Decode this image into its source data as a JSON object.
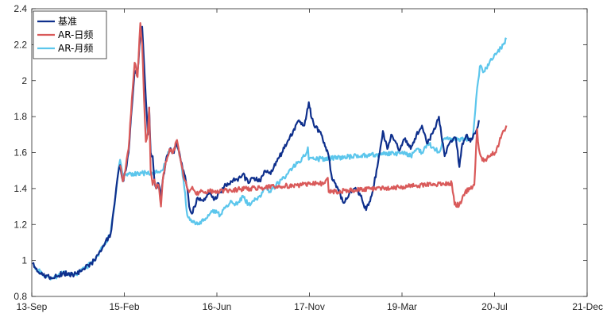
{
  "chart_data": {
    "type": "line",
    "title": "",
    "xlabel": "",
    "ylabel": "",
    "xlim": [
      "2013-09-13",
      "2021-12-13"
    ],
    "ylim": [
      0.8,
      2.4
    ],
    "x_ticks": [
      "13-Sep",
      "15-Feb",
      "16-Jun",
      "17-Nov",
      "19-Mar",
      "20-Jul",
      "21-Dec"
    ],
    "y_ticks": [
      "0.8",
      "1",
      "1.2",
      "1.4",
      "1.6",
      "1.8",
      "2",
      "2.2",
      "2.4"
    ],
    "grid": false,
    "legend_position": "top-left",
    "series": [
      {
        "name": "基准",
        "color": "#0e2f8c",
        "x": [
          "2013-09-18",
          "2013-11-10",
          "2014-01-01",
          "2014-03-01",
          "2014-05-01",
          "2014-07-01",
          "2014-08-20",
          "2014-10-01",
          "2014-11-15",
          "2014-12-10",
          "2014-12-25",
          "2015-01-05",
          "2015-01-20",
          "2015-02-05",
          "2015-02-20",
          "2015-03-10",
          "2015-03-25",
          "2015-04-10",
          "2015-04-25",
          "2015-05-05",
          "2015-05-15",
          "2015-05-25",
          "2015-06-05",
          "2015-06-12",
          "2015-06-20",
          "2015-07-01",
          "2015-07-10",
          "2015-07-20",
          "2015-08-01",
          "2015-08-15",
          "2015-08-25",
          "2015-09-10",
          "2015-10-01",
          "2015-10-20",
          "2015-11-10",
          "2015-12-01",
          "2015-12-20",
          "2016-01-05",
          "2016-01-15",
          "2016-01-30",
          "2016-03-01",
          "2016-04-01",
          "2016-05-01",
          "2016-06-01",
          "2016-07-01",
          "2016-08-01",
          "2016-09-01",
          "2016-10-01",
          "2016-11-01",
          "2016-12-01",
          "2017-01-01",
          "2017-02-01",
          "2017-03-01",
          "2017-04-01",
          "2017-05-01",
          "2017-06-01",
          "2017-07-01",
          "2017-08-01",
          "2017-09-01",
          "2017-10-01",
          "2017-10-25",
          "2017-11-10",
          "2017-12-01",
          "2018-01-01",
          "2018-01-25",
          "2018-02-10",
          "2018-03-01",
          "2018-04-01",
          "2018-05-01",
          "2018-06-01",
          "2018-07-01",
          "2018-08-01",
          "2018-09-01",
          "2018-10-01",
          "2018-11-01",
          "2018-12-01",
          "2018-12-25",
          "2019-01-15",
          "2019-02-15",
          "2019-03-01",
          "2019-04-01",
          "2019-05-01",
          "2019-06-01",
          "2019-07-01",
          "2019-08-01",
          "2019-09-01",
          "2019-10-01",
          "2019-11-01",
          "2019-12-01",
          "2020-01-01",
          "2020-01-20",
          "2020-02-05",
          "2020-03-01",
          "2020-03-20",
          "2020-04-01",
          "2020-04-20",
          "2020-05-05"
        ],
        "y": [
          0.98,
          0.92,
          0.9,
          0.93,
          0.92,
          0.96,
          1.0,
          1.07,
          1.15,
          1.35,
          1.48,
          1.53,
          1.44,
          1.5,
          1.6,
          1.85,
          2.05,
          2.05,
          2.25,
          2.3,
          2.1,
          1.9,
          1.7,
          1.85,
          1.6,
          1.58,
          1.45,
          1.4,
          1.43,
          1.35,
          1.45,
          1.55,
          1.62,
          1.6,
          1.65,
          1.55,
          1.48,
          1.4,
          1.3,
          1.26,
          1.35,
          1.33,
          1.38,
          1.34,
          1.38,
          1.42,
          1.44,
          1.45,
          1.48,
          1.43,
          1.46,
          1.44,
          1.5,
          1.48,
          1.55,
          1.6,
          1.66,
          1.72,
          1.78,
          1.75,
          1.88,
          1.79,
          1.74,
          1.7,
          1.63,
          1.58,
          1.45,
          1.4,
          1.32,
          1.37,
          1.4,
          1.36,
          1.28,
          1.36,
          1.52,
          1.72,
          1.62,
          1.7,
          1.65,
          1.61,
          1.68,
          1.62,
          1.7,
          1.75,
          1.65,
          1.72,
          1.8,
          1.58,
          1.66,
          1.68,
          1.52,
          1.65,
          1.7,
          1.66,
          1.68,
          1.72,
          1.78
        ]
      },
      {
        "name": "AR-日频",
        "color": "#d95a5a",
        "x": [
          "2015-01-05",
          "2015-01-20",
          "2015-02-05",
          "2015-02-20",
          "2015-03-10",
          "2015-03-25",
          "2015-04-10",
          "2015-04-25",
          "2015-05-05",
          "2015-05-15",
          "2015-05-25",
          "2015-06-05",
          "2015-06-12",
          "2015-06-20",
          "2015-07-01",
          "2015-07-10",
          "2015-07-20",
          "2015-08-01",
          "2015-08-15",
          "2015-08-25",
          "2015-09-10",
          "2015-10-01",
          "2015-10-20",
          "2015-11-10",
          "2015-12-01",
          "2015-12-20",
          "2016-01-05",
          "2016-01-15",
          "2016-02-01",
          "2016-02-20",
          "2016-03-15",
          "2018-01-20",
          "2018-02-05",
          "2018-02-10",
          "2019-12-10",
          "2019-12-25",
          "2020-01-20",
          "2020-02-20",
          "2020-03-20",
          "2020-04-10",
          "2020-04-25",
          "2020-05-05",
          "2020-05-15",
          "2020-06-01",
          "2020-07-01",
          "2020-08-01",
          "2020-09-01",
          "2020-10-01"
        ],
        "y": [
          1.53,
          1.44,
          1.52,
          1.62,
          1.9,
          2.1,
          2.02,
          2.32,
          2.2,
          1.9,
          1.66,
          1.72,
          1.85,
          1.5,
          1.42,
          1.45,
          1.4,
          1.42,
          1.3,
          1.45,
          1.55,
          1.62,
          1.6,
          1.67,
          1.55,
          1.45,
          1.4,
          1.38,
          1.41,
          1.37,
          1.38,
          1.43,
          1.46,
          1.38,
          1.43,
          1.31,
          1.31,
          1.38,
          1.4,
          1.42,
          1.73,
          1.62,
          1.58,
          1.55,
          1.58,
          1.6,
          1.68,
          1.75
        ]
      },
      {
        "name": "AR-月频",
        "color": "#5cc6ec",
        "x": [
          "2013-09-18",
          "2013-11-10",
          "2014-01-01",
          "2014-03-01",
          "2014-05-01",
          "2014-07-01",
          "2014-08-20",
          "2014-10-01",
          "2014-11-15",
          "2014-12-10",
          "2014-12-25",
          "2015-01-05",
          "2015-01-20",
          "2015-02-05",
          "2015-08-10",
          "2015-08-20",
          "2015-09-10",
          "2015-10-01",
          "2015-10-20",
          "2015-11-10",
          "2015-12-01",
          "2015-12-20",
          "2016-01-05",
          "2016-01-15",
          "2016-02-01",
          "2016-03-01",
          "2016-04-01",
          "2016-05-01",
          "2016-06-01",
          "2016-07-01",
          "2016-08-01",
          "2016-09-01",
          "2016-10-01",
          "2016-11-01",
          "2016-12-01",
          "2017-01-01",
          "2017-02-01",
          "2017-03-01",
          "2017-04-01",
          "2017-05-01",
          "2017-06-01",
          "2017-07-01",
          "2017-08-01",
          "2017-09-01",
          "2017-10-01",
          "2017-10-20",
          "2017-10-25",
          "2019-04-01",
          "2019-05-01",
          "2019-06-01",
          "2019-07-01",
          "2019-08-01",
          "2019-09-01",
          "2019-10-01",
          "2019-11-01",
          "2020-01-01",
          "2020-04-01",
          "2020-04-20",
          "2020-05-01",
          "2020-05-10",
          "2020-06-01",
          "2020-07-01",
          "2020-08-01",
          "2020-09-01",
          "2020-10-01"
        ],
        "y": [
          0.98,
          0.92,
          0.9,
          0.93,
          0.92,
          0.96,
          1.0,
          1.07,
          1.15,
          1.35,
          1.48,
          1.56,
          1.48,
          1.48,
          1.49,
          1.5,
          1.55,
          1.62,
          1.6,
          1.66,
          1.55,
          1.4,
          1.25,
          1.24,
          1.22,
          1.2,
          1.22,
          1.25,
          1.28,
          1.25,
          1.3,
          1.33,
          1.31,
          1.36,
          1.31,
          1.33,
          1.36,
          1.4,
          1.38,
          1.42,
          1.45,
          1.48,
          1.52,
          1.55,
          1.58,
          1.63,
          1.56,
          1.6,
          1.58,
          1.62,
          1.6,
          1.65,
          1.63,
          1.6,
          1.68,
          1.67,
          1.68,
          1.9,
          2.0,
          2.08,
          2.05,
          2.1,
          2.15,
          2.18,
          2.23
        ]
      }
    ]
  }
}
